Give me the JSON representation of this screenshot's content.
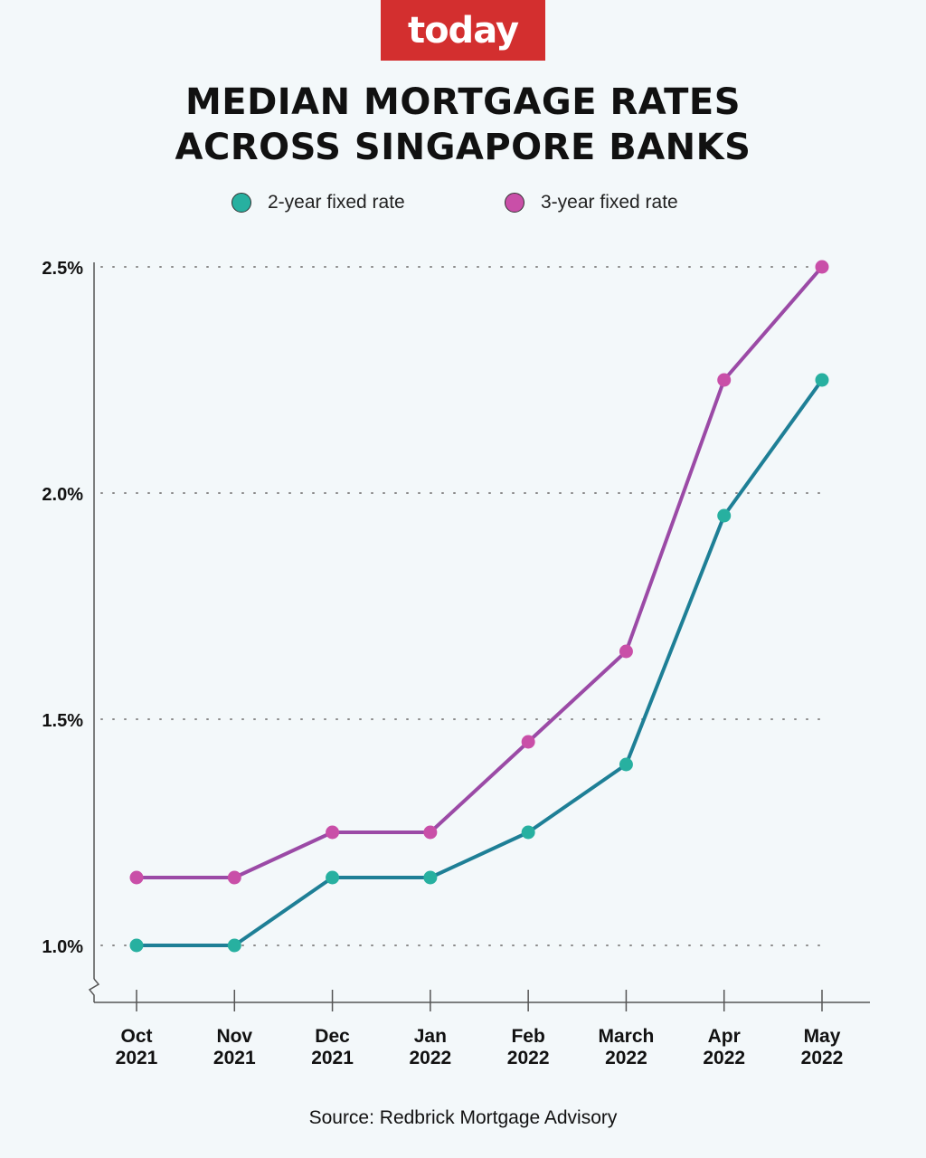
{
  "brand": {
    "logo_text": "today",
    "logo_color": "#d32f2f"
  },
  "header": {
    "title_line1": "MEDIAN MORTGAGE RATES",
    "title_line2": "ACROSS SINGAPORE BANKS"
  },
  "source": "Source: Redbrick Mortgage Advisory",
  "chart_data": {
    "type": "line",
    "title": "MEDIAN MORTGAGE RATES ACROSS SINGAPORE BANKS",
    "categories": [
      [
        "Oct",
        "2021"
      ],
      [
        "Nov",
        "2021"
      ],
      [
        "Dec",
        "2021"
      ],
      [
        "Jan",
        "2022"
      ],
      [
        "Feb",
        "2022"
      ],
      [
        "March",
        "2022"
      ],
      [
        "Apr",
        "2022"
      ],
      [
        "May",
        "2022"
      ]
    ],
    "y_ticks": [
      "1.0%",
      "1.5%",
      "2.0%",
      "2.5%"
    ],
    "y_tick_values": [
      1.0,
      1.5,
      2.0,
      2.5
    ],
    "ylim": [
      0.88,
      2.5
    ],
    "grid": "dotted horizontal",
    "legend_position": "top",
    "series": [
      {
        "name": "2-year fixed rate",
        "values": [
          1.0,
          1.0,
          1.15,
          1.15,
          1.25,
          1.4,
          1.95,
          2.25
        ],
        "line_color": "#1e7f96",
        "marker_color": "#27b0a0"
      },
      {
        "name": "3-year fixed rate",
        "values": [
          1.15,
          1.15,
          1.25,
          1.25,
          1.45,
          1.65,
          2.25,
          2.5
        ],
        "line_color": "#9b4aa6",
        "marker_color": "#c94fa8"
      }
    ]
  }
}
